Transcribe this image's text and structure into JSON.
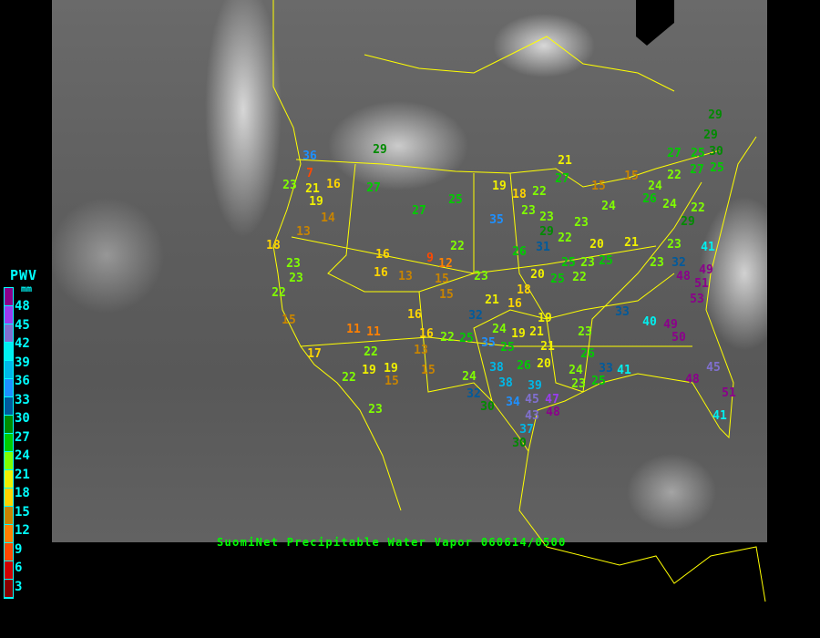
{
  "title": "SuomiNet Precipitable Water Vapor 060614/0500",
  "legend": {
    "title": "PWV",
    "unit": "mm",
    "labels": [
      "48",
      "45",
      "42",
      "39",
      "36",
      "33",
      "30",
      "27",
      "24",
      "21",
      "18",
      "15",
      "12",
      "9",
      "6",
      "3"
    ],
    "colors": [
      "#8b008b",
      "#9a3cf0",
      "#8070d0",
      "#00f0f0",
      "#00b8e8",
      "#1e90ff",
      "#005a9c",
      "#008b00",
      "#00cc00",
      "#80ff00",
      "#f0f000",
      "#ffd400",
      "#c88400",
      "#ff8000",
      "#ff4800",
      "#d00000",
      "#880000"
    ]
  },
  "stations": [
    29,
    29,
    36,
    7,
    21,
    23,
    16,
    19,
    27,
    14,
    27,
    25,
    19,
    18,
    22,
    21,
    27,
    15,
    15,
    24,
    23,
    23,
    23,
    35,
    18,
    13,
    22,
    26,
    31,
    29,
    22,
    20,
    21,
    23,
    25,
    25,
    25,
    22,
    20,
    18,
    23,
    9,
    12,
    15,
    16,
    16,
    13,
    15,
    23,
    23,
    22,
    15,
    16,
    11,
    11,
    13,
    16,
    17,
    22,
    19,
    19,
    22,
    15,
    15,
    23,
    21,
    16,
    32,
    24,
    19,
    21,
    19,
    21,
    25,
    22,
    35,
    25,
    26,
    20,
    24,
    38,
    38,
    32,
    39,
    45,
    47,
    48,
    34,
    30,
    43,
    37,
    30,
    23,
    26,
    24,
    23,
    25,
    33,
    41,
    33,
    40,
    49,
    50,
    22,
    23,
    32,
    48,
    49,
    51,
    53,
    41,
    24,
    29,
    23,
    22,
    24,
    26,
    27,
    25,
    30,
    27,
    25,
    48,
    45,
    51,
    41,
    29
  ]
}
